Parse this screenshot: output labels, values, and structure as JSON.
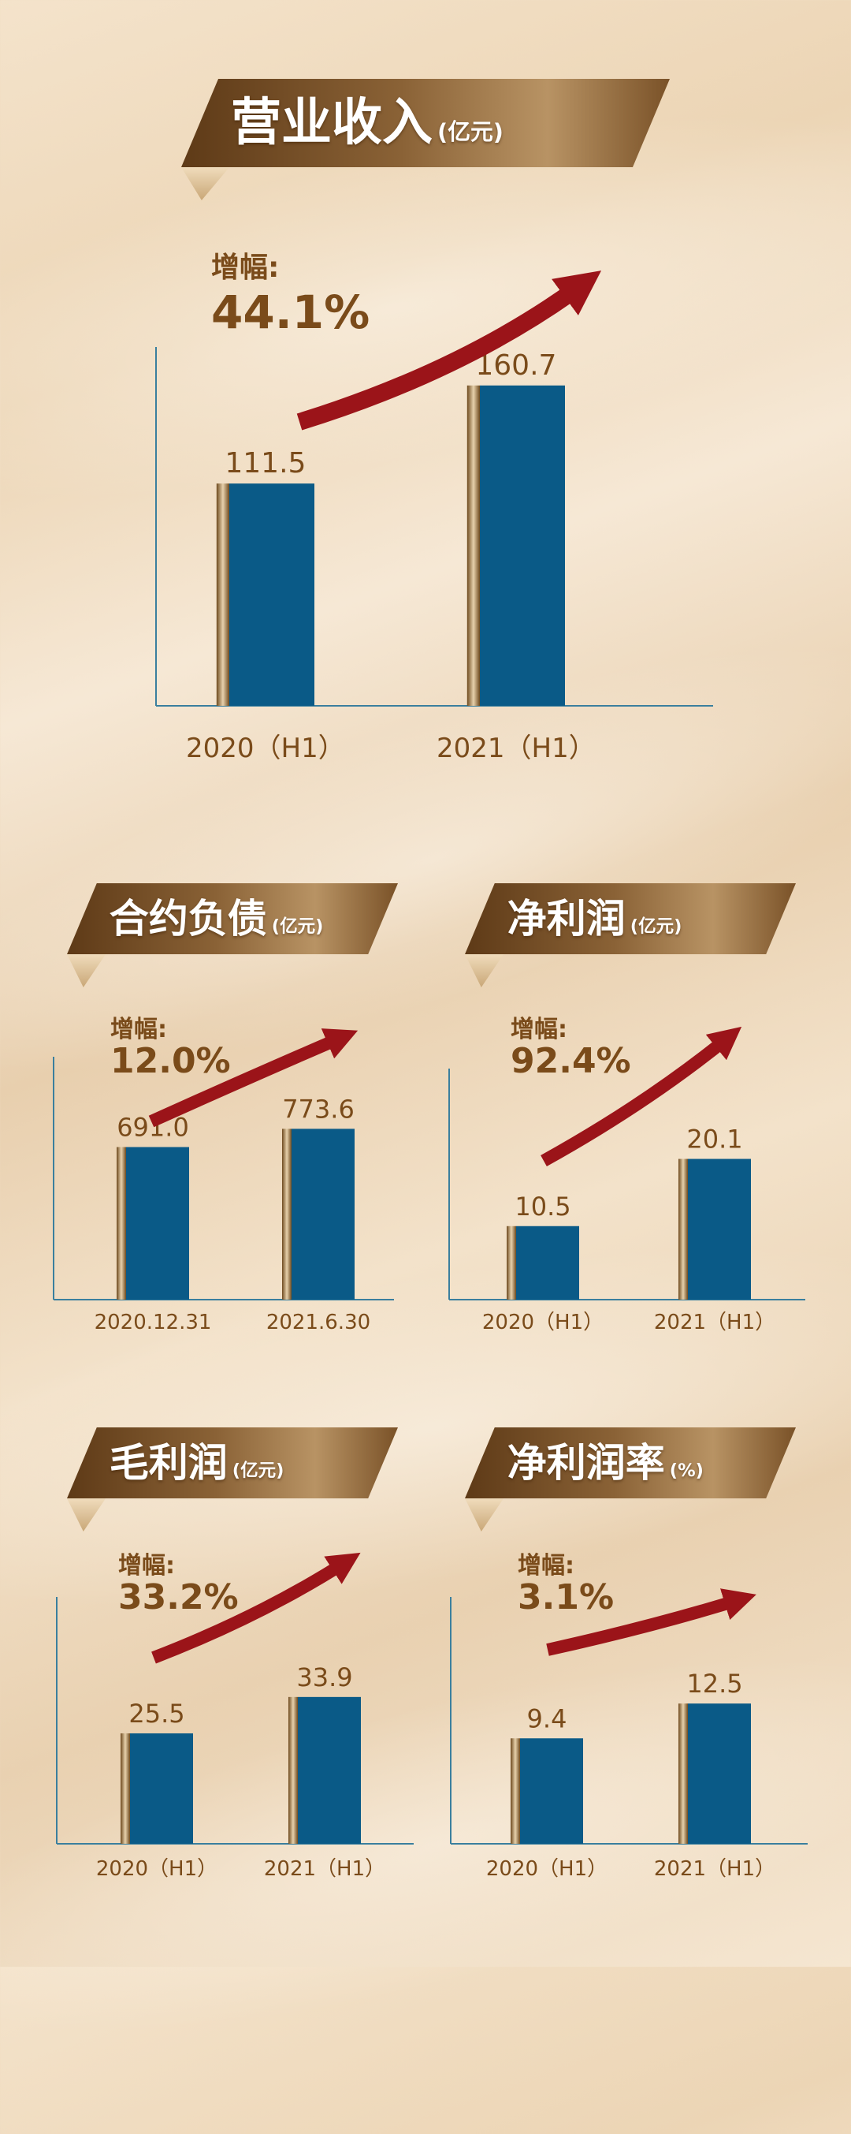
{
  "colors": {
    "bar": "#0a5a87",
    "bar_side_dark": "#6e4a1e",
    "bar_side_light": "#e7d1ac",
    "axis": "#3a7f9e",
    "arrow": "#9b1419",
    "text_brown": "#7a4b1a",
    "banner_dark": "#5e3a17",
    "banner_light": "#b89364"
  },
  "growth_label": "增幅:",
  "chart_data": [
    {
      "type": "bar",
      "title": "营业收入",
      "unit": "(亿元)",
      "growth": "44.1%",
      "categories": [
        "2020（H1）",
        "2021（H1）"
      ],
      "values": [
        111.5,
        160.7
      ],
      "value_labels": [
        "111.5",
        "160.7"
      ],
      "ylim": [
        0,
        180
      ]
    },
    {
      "type": "bar",
      "title": "合约负债",
      "unit": "(亿元)",
      "growth": "12.0%",
      "categories": [
        "2020.12.31",
        "2021.6.30"
      ],
      "values": [
        691.0,
        773.6
      ],
      "value_labels": [
        "691.0",
        "773.6"
      ],
      "ylim": [
        0,
        1100
      ]
    },
    {
      "type": "bar",
      "title": "净利润",
      "unit": "(亿元)",
      "growth": "92.4%",
      "categories": [
        "2020（H1）",
        "2021（H1）"
      ],
      "values": [
        10.5,
        20.1
      ],
      "value_labels": [
        "10.5",
        "20.1"
      ],
      "ylim": [
        0,
        33
      ]
    },
    {
      "type": "bar",
      "title": "毛利润",
      "unit": "(亿元)",
      "growth": "33.2%",
      "categories": [
        "2020（H1）",
        "2021（H1）"
      ],
      "values": [
        25.5,
        33.9
      ],
      "value_labels": [
        "25.5",
        "33.9"
      ],
      "ylim": [
        0,
        57
      ]
    },
    {
      "type": "bar",
      "title": "净利润率",
      "unit": "(%)",
      "growth": "3.1%",
      "categories": [
        "2020（H1）",
        "2021（H1）"
      ],
      "values": [
        9.4,
        12.5
      ],
      "value_labels": [
        "9.4",
        "12.5"
      ],
      "ylim": [
        0,
        22
      ]
    }
  ]
}
